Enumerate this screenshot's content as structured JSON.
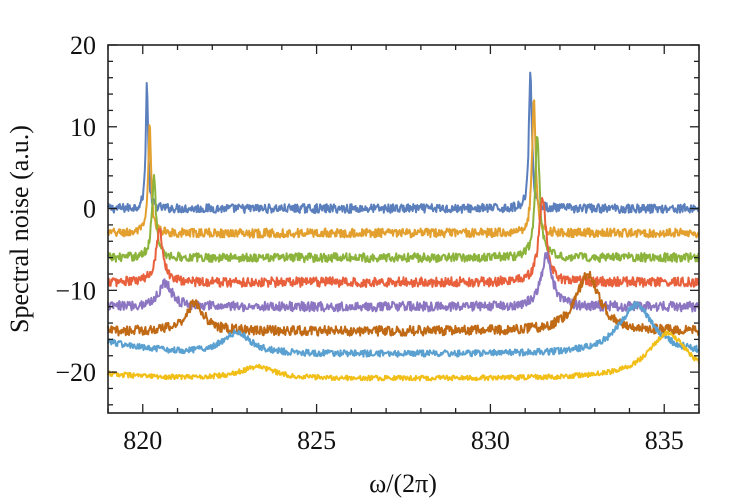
{
  "chart_data": {
    "type": "line",
    "title": "",
    "xlabel": "ω/(2π)",
    "ylabel": "Spectral noise (a.u.)",
    "xlim": [
      819,
      836
    ],
    "ylim": [
      -25,
      20
    ],
    "x_ticks": [
      820,
      825,
      830,
      835
    ],
    "y_ticks": [
      20,
      10,
      0,
      -10,
      -20
    ],
    "y_tick_labels": [
      "20",
      "10",
      "0",
      "−10",
      "−20"
    ],
    "grid": false,
    "legend": "none",
    "colors": [
      "#5b7fbc",
      "#e3a02f",
      "#8cb43c",
      "#e8603c",
      "#8c76c2",
      "#c06a16",
      "#5aa0d0",
      "#f2bf18"
    ],
    "series": [
      {
        "offset": 0,
        "noise": 0.55,
        "peaks": [
          {
            "x": 820.12,
            "amp": 15.5,
            "width": 0.04
          },
          {
            "x": 831.15,
            "amp": 17.3,
            "width": 0.05
          }
        ]
      },
      {
        "offset": -3,
        "noise": 0.55,
        "peaks": [
          {
            "x": 820.2,
            "amp": 13.2,
            "width": 0.05
          },
          {
            "x": 831.25,
            "amp": 16.9,
            "width": 0.06
          }
        ]
      },
      {
        "offset": -6,
        "noise": 0.55,
        "peaks": [
          {
            "x": 820.32,
            "amp": 10.0,
            "width": 0.07
          },
          {
            "x": 831.35,
            "amp": 14.8,
            "width": 0.08
          }
        ]
      },
      {
        "offset": -9,
        "noise": 0.6,
        "peaks": [
          {
            "x": 820.48,
            "amp": 6.5,
            "width": 0.12
          },
          {
            "x": 831.5,
            "amp": 10.5,
            "width": 0.12
          }
        ]
      },
      {
        "offset": -12,
        "noise": 0.6,
        "peaks": [
          {
            "x": 820.65,
            "amp": 3.0,
            "width": 0.22
          },
          {
            "x": 831.62,
            "amp": 6.5,
            "width": 0.18
          }
        ]
      },
      {
        "offset": -15,
        "noise": 0.6,
        "peaks": [
          {
            "x": 821.5,
            "amp": 3.5,
            "width": 0.3
          },
          {
            "x": 832.8,
            "amp": 7.0,
            "width": 0.4
          }
        ]
      },
      {
        "offset": -17.8,
        "noise": 0.4,
        "slope": 1.6,
        "peaks": [
          {
            "x": 822.7,
            "amp": 2.5,
            "width": 0.5
          },
          {
            "x": 834.2,
            "amp": 6.0,
            "width": 0.6
          }
        ]
      },
      {
        "offset": -20.8,
        "noise": 0.3,
        "slope": 0.6,
        "peaks": [
          {
            "x": 823.3,
            "amp": 1.4,
            "width": 0.6
          },
          {
            "x": 835.1,
            "amp": 5.5,
            "width": 0.7
          }
        ]
      }
    ]
  }
}
